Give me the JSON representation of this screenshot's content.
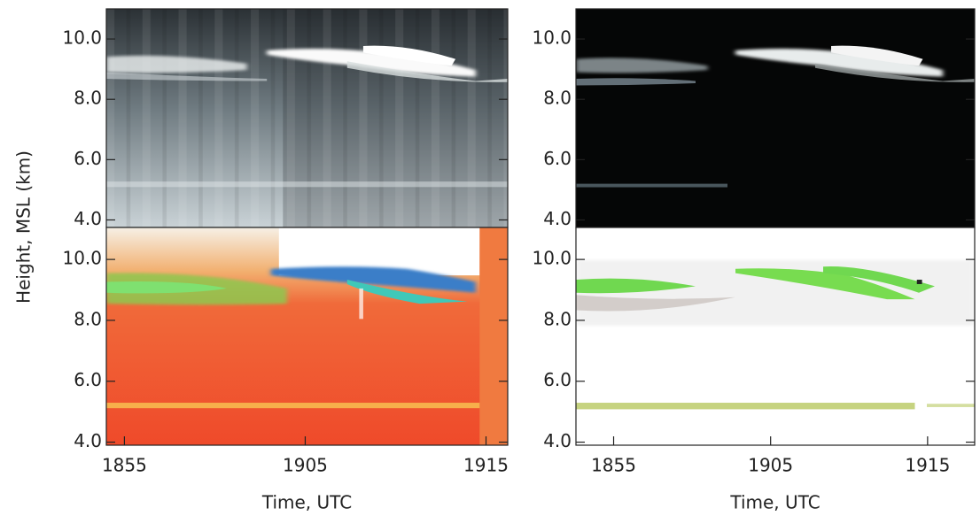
{
  "chart_data": [
    {
      "type": "image",
      "colormap": "gray",
      "xlim": [
        54,
        76.2
      ],
      "ylim": [
        3.75,
        11.0
      ],
      "yticks": [
        {
          "value": 4,
          "label": "4.0"
        },
        {
          "value": 6,
          "label": "6.0"
        },
        {
          "value": 8,
          "label": "8.0"
        },
        {
          "value": 10,
          "label": "10.0"
        }
      ]
    },
    {
      "type": "image",
      "colormap": "dark",
      "xlim": [
        52.6,
        78
      ],
      "ylim": [
        3.75,
        11.0
      ],
      "yticks": [
        {
          "value": 4,
          "label": "4.0"
        },
        {
          "value": 6,
          "label": "6.0"
        },
        {
          "value": 8,
          "label": "8.0"
        },
        {
          "value": 10,
          "label": "10.0"
        }
      ]
    },
    {
      "type": "image",
      "colormap": "warm",
      "xlim": [
        54,
        76.2
      ],
      "ylim": [
        3.9,
        11.05
      ],
      "ylabel": "Height, MSL (km)",
      "xlabel": "Time, UTC",
      "xticks": [
        {
          "value": 55,
          "label": "1855"
        },
        {
          "value": 65,
          "label": "1905"
        },
        {
          "value": 75,
          "label": "1915"
        }
      ],
      "yticks": [
        {
          "value": 4,
          "label": "4.0"
        },
        {
          "value": 6,
          "label": "6.0"
        },
        {
          "value": 8,
          "label": "8.0"
        },
        {
          "value": 10,
          "label": "10.0"
        }
      ]
    },
    {
      "type": "image",
      "colormap": "light",
      "xlim": [
        52.6,
        78
      ],
      "ylim": [
        3.9,
        11.05
      ],
      "xlabel": "Time, UTC",
      "xticks": [
        {
          "value": 55,
          "label": "1855"
        },
        {
          "value": 65,
          "label": "1905"
        },
        {
          "value": 75,
          "label": "1915"
        }
      ],
      "yticks": [
        {
          "value": 4,
          "label": "4.0"
        },
        {
          "value": 6,
          "label": "6.0"
        },
        {
          "value": 8,
          "label": "8.0"
        },
        {
          "value": 10,
          "label": "10.0"
        }
      ]
    }
  ]
}
